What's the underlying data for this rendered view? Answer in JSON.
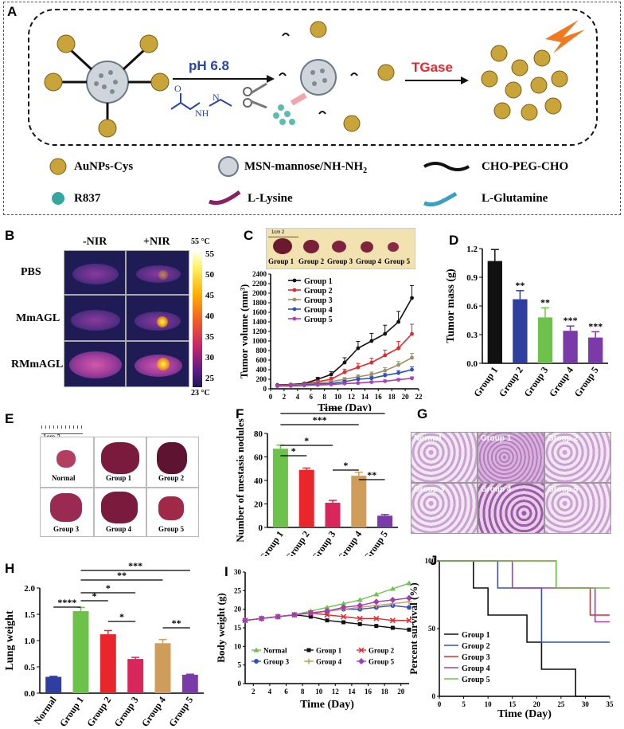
{
  "panel_letters": {
    "A": "A",
    "B": "B",
    "C": "C",
    "D": "D",
    "E": "E",
    "F": "F",
    "G": "G",
    "H": "H",
    "I": "I",
    "J": "J"
  },
  "panelA": {
    "ph_label": "pH 6.8",
    "tgase_label": "TGase",
    "legend": [
      {
        "label": "AuNPs-Cys",
        "icon": "gold-nanoparticle-icon"
      },
      {
        "label": "MSN-mannose/NH-NH",
        "sub": "2",
        "icon": "mesoporous-silica-icon"
      },
      {
        "label": "CHO-PEG-CHO",
        "icon": "black-polymer-icon"
      },
      {
        "label": "R837",
        "icon": "teal-sphere-icon"
      },
      {
        "label": "L-Lysine",
        "icon": "magenta-chain-icon"
      },
      {
        "label": "L-Glutamine",
        "icon": "cyan-chain-icon"
      }
    ]
  },
  "panelB": {
    "col_headers": [
      "-NIR",
      "+NIR"
    ],
    "rows": [
      "PBS",
      "MmAGL",
      "RMmAGL"
    ],
    "scale_top": "55 °C",
    "scale_bottom": "23 °C",
    "scale_ticks": [
      "55",
      "50",
      "45",
      "40",
      "35",
      "30",
      "25"
    ]
  },
  "panelC": {
    "photo_labels": [
      "Group 1",
      "Group 2",
      "Group 3",
      "Group 4",
      "Group 5"
    ],
    "ruler_label": "1cm 2"
  },
  "panelE": {
    "ruler_label": "1cm 2",
    "labels": [
      "Normal",
      "Group 1",
      "Group 2",
      "Group 3",
      "Group 4",
      "Group 5"
    ]
  },
  "panelG": {
    "labels": [
      "Normal",
      "Group 1",
      "Group 2",
      "Group 3",
      "Group 4",
      "Group 5"
    ]
  },
  "chart_data": [
    {
      "panel": "C",
      "type": "line",
      "xlabel": "Time (Day)",
      "ylabel": "Tumor volume (mm³)",
      "xlim": [
        0,
        22
      ],
      "ylim": [
        0,
        2400
      ],
      "xticks": [
        0,
        2,
        4,
        6,
        8,
        10,
        12,
        14,
        16,
        18,
        20,
        22
      ],
      "yticks": [
        0,
        200,
        400,
        600,
        800,
        1000,
        1200,
        1400,
        1600,
        1800,
        2000,
        2200,
        2400
      ],
      "x": [
        1,
        3,
        5,
        7,
        9,
        11,
        13,
        15,
        17,
        19,
        21
      ],
      "series": [
        {
          "name": "Group 1",
          "color": "#111111",
          "values": [
            80,
            90,
            110,
            200,
            300,
            550,
            850,
            1000,
            1150,
            1400,
            1900
          ],
          "err": [
            10,
            12,
            15,
            40,
            60,
            100,
            140,
            160,
            180,
            220,
            260
          ]
        },
        {
          "name": "Group 2",
          "color": "#e8262b",
          "values": [
            70,
            85,
            95,
            150,
            200,
            350,
            450,
            550,
            700,
            850,
            1150
          ],
          "err": [
            10,
            12,
            14,
            30,
            40,
            60,
            80,
            90,
            110,
            140,
            200
          ]
        },
        {
          "name": "Group 3",
          "color": "#a09060",
          "values": [
            65,
            80,
            90,
            120,
            150,
            200,
            250,
            300,
            380,
            500,
            650
          ],
          "err": [
            8,
            10,
            12,
            20,
            25,
            35,
            40,
            50,
            60,
            70,
            90
          ]
        },
        {
          "name": "Group 4",
          "color": "#3050c0",
          "values": [
            60,
            70,
            80,
            100,
            110,
            150,
            200,
            220,
            280,
            330,
            400
          ],
          "err": [
            8,
            9,
            10,
            15,
            20,
            25,
            30,
            35,
            40,
            50,
            60
          ]
        },
        {
          "name": "Group 5",
          "color": "#b040b0",
          "values": [
            55,
            60,
            70,
            80,
            90,
            110,
            120,
            140,
            160,
            190,
            220
          ],
          "err": [
            6,
            7,
            8,
            10,
            12,
            15,
            18,
            20,
            22,
            25,
            30
          ]
        }
      ]
    },
    {
      "panel": "D",
      "type": "bar",
      "ylabel": "Tumor mass (g)",
      "ylim": [
        0,
        1.2
      ],
      "yticks": [
        "0.0",
        "0.3",
        "0.6",
        "0.9",
        "1.2"
      ],
      "categories": [
        "Group 1",
        "Group 2",
        "Group 3",
        "Group 4",
        "Group 5"
      ],
      "values": [
        1.07,
        0.67,
        0.48,
        0.34,
        0.27
      ],
      "err": [
        0.12,
        0.09,
        0.1,
        0.05,
        0.06
      ],
      "colors": [
        "#111111",
        "#2f3f9f",
        "#6cc24a",
        "#7a3aa8",
        "#7a3aa8"
      ],
      "sig": [
        "",
        "**",
        "**",
        "***",
        "***"
      ]
    },
    {
      "panel": "F",
      "type": "bar",
      "ylabel": "Number of mestasis nodules",
      "ylim": [
        0,
        80
      ],
      "yticks": [
        "0",
        "20",
        "40",
        "60",
        "80"
      ],
      "categories": [
        "Group 1",
        "Group 2",
        "Group 3",
        "Group 4",
        "Group 5"
      ],
      "values": [
        67,
        49,
        21,
        44,
        10
      ],
      "err": [
        3,
        1.5,
        2,
        3,
        1
      ],
      "colors": [
        "#6cc24a",
        "#e8262b",
        "#d9265c",
        "#d09c5a",
        "#7a3aa8"
      ],
      "brackets": [
        {
          "from": 0,
          "to": 1,
          "label": "*"
        },
        {
          "from": 0,
          "to": 2,
          "label": "*"
        },
        {
          "from": 2,
          "to": 3,
          "label": "*"
        },
        {
          "from": 3,
          "to": 4,
          "label": "**"
        },
        {
          "from": 0,
          "to": 3,
          "label": "***"
        },
        {
          "from": 0,
          "to": 4,
          "label": "****"
        }
      ]
    },
    {
      "panel": "H",
      "type": "bar",
      "ylabel": "Lung weight",
      "ylim": [
        0,
        2.0
      ],
      "yticks": [
        "0.0",
        "0.5",
        "1.0",
        "1.5",
        "2.0"
      ],
      "categories": [
        "Normal",
        "Group 1",
        "Group 2",
        "Group 3",
        "Group 4",
        "Group 5"
      ],
      "values": [
        0.31,
        1.56,
        1.12,
        0.65,
        0.95,
        0.35
      ],
      "err": [
        0.01,
        0.07,
        0.07,
        0.03,
        0.07,
        0.01
      ],
      "colors": [
        "#2f3f9f",
        "#6cc24a",
        "#e8262b",
        "#d9265c",
        "#d09c5a",
        "#7a3aa8"
      ],
      "brackets": [
        {
          "from": 0,
          "to": 1,
          "label": "****"
        },
        {
          "from": 1,
          "to": 2,
          "label": "*"
        },
        {
          "from": 2,
          "to": 3,
          "label": "*"
        },
        {
          "from": 4,
          "to": 5,
          "label": "**"
        },
        {
          "from": 1,
          "to": 3,
          "label": "*"
        },
        {
          "from": 1,
          "to": 4,
          "label": "**"
        },
        {
          "from": 1,
          "to": 5,
          "label": "***"
        }
      ]
    },
    {
      "panel": "I",
      "type": "line",
      "xlabel": "Time (Day)",
      "ylabel": "Body weight (g)",
      "xlim": [
        1,
        21
      ],
      "ylim": [
        0,
        30
      ],
      "xticks": [
        2,
        4,
        6,
        8,
        10,
        12,
        14,
        16,
        18,
        20
      ],
      "yticks": [
        0,
        5,
        10,
        15,
        20,
        25,
        30
      ],
      "x": [
        1,
        3,
        5,
        7,
        9,
        11,
        13,
        15,
        17,
        19,
        21
      ],
      "series": [
        {
          "name": "Normal",
          "color": "#6cc24a",
          "marker": "triangle",
          "values": [
            17,
            17.5,
            18,
            18.5,
            19.5,
            20.5,
            21.5,
            22.5,
            24,
            25.5,
            27
          ]
        },
        {
          "name": "Group 1",
          "color": "#111111",
          "marker": "square",
          "values": [
            17,
            17.5,
            18,
            18.5,
            18,
            17,
            16.5,
            16,
            15.5,
            15,
            14.5
          ]
        },
        {
          "name": "Group 2",
          "color": "#e8262b",
          "marker": "x",
          "values": [
            17,
            17.5,
            18,
            18.5,
            19,
            18.5,
            18,
            17.5,
            17.5,
            17,
            17
          ]
        },
        {
          "name": "Group 3",
          "color": "#3050c0",
          "marker": "circle",
          "values": [
            17,
            17.5,
            18,
            18.5,
            19,
            19.5,
            20,
            20,
            20.5,
            21,
            20.5
          ]
        },
        {
          "name": "Group 4",
          "color": "#d09c5a",
          "marker": "plus",
          "values": [
            17,
            17.5,
            18,
            18.5,
            19,
            19.5,
            20,
            20.5,
            21,
            21.5,
            22
          ]
        },
        {
          "name": "Group 5",
          "color": "#a040b0",
          "marker": "diamond",
          "values": [
            17,
            17.5,
            18,
            18.5,
            19,
            19.5,
            20.5,
            21,
            22,
            22.5,
            23
          ]
        }
      ]
    },
    {
      "panel": "J",
      "type": "line",
      "xlabel": "Time (Day)",
      "ylabel": "Percent survival (%)",
      "xlim": [
        0,
        35
      ],
      "ylim": [
        0,
        100
      ],
      "xticks": [
        0,
        5,
        10,
        15,
        20,
        25,
        30,
        35
      ],
      "yticks": [
        0,
        50,
        100
      ],
      "series": [
        {
          "name": "Group 1",
          "color": "#111111",
          "steps": [
            [
              0,
              100
            ],
            [
              7,
              100
            ],
            [
              7,
              80
            ],
            [
              10,
              80
            ],
            [
              10,
              60
            ],
            [
              18,
              60
            ],
            [
              18,
              40
            ],
            [
              21,
              40
            ],
            [
              21,
              20
            ],
            [
              28,
              20
            ],
            [
              28,
              0
            ],
            [
              35,
              0
            ]
          ]
        },
        {
          "name": "Group 2",
          "color": "#3050c0",
          "steps": [
            [
              0,
              100
            ],
            [
              12,
              100
            ],
            [
              12,
              80
            ],
            [
              21,
              80
            ],
            [
              21,
              40
            ],
            [
              35,
              40
            ]
          ]
        },
        {
          "name": "Group 3",
          "color": "#e8262b",
          "steps": [
            [
              0,
              100
            ],
            [
              24,
              100
            ],
            [
              24,
              80
            ],
            [
              31,
              80
            ],
            [
              31,
              60
            ],
            [
              35,
              60
            ]
          ]
        },
        {
          "name": "Group 4",
          "color": "#a040b0",
          "steps": [
            [
              0,
              100
            ],
            [
              15,
              100
            ],
            [
              15,
              80
            ],
            [
              32,
              80
            ],
            [
              32,
              55
            ],
            [
              35,
              55
            ]
          ]
        },
        {
          "name": "Group 5",
          "color": "#6cc24a",
          "steps": [
            [
              0,
              100
            ],
            [
              18,
              100
            ],
            [
              18,
              100
            ],
            [
              24,
              100
            ],
            [
              24,
              80
            ],
            [
              35,
              80
            ]
          ]
        }
      ]
    }
  ]
}
